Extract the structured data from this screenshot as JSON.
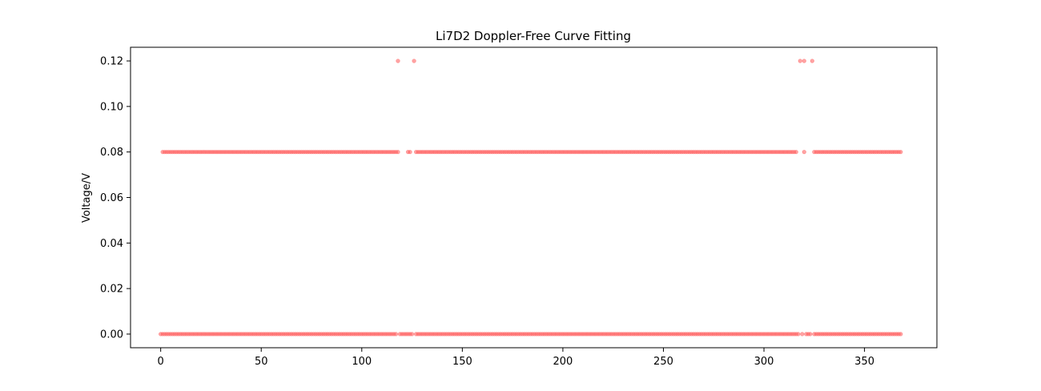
{
  "chart_data": {
    "type": "scatter",
    "title": "Li7D2 Doppler-Free Curve Fitting",
    "xlabel": "",
    "ylabel": "Voltage/V",
    "xlim": [
      -15,
      386
    ],
    "ylim": [
      -0.006,
      0.126
    ],
    "xticks": [
      0,
      50,
      100,
      150,
      200,
      250,
      300,
      350
    ],
    "yticks": [
      0.0,
      0.02,
      0.04,
      0.06,
      0.08,
      0.1,
      0.12
    ],
    "ytick_labels": [
      "0.00",
      "0.02",
      "0.04",
      "0.06",
      "0.08",
      "0.10",
      "0.12"
    ],
    "grid": false,
    "marker_color": "#ff5a5a",
    "series": [
      {
        "x_range": [
          0,
          368
        ],
        "y_levels": [
          0.0,
          0.08,
          0.12
        ],
        "high_points_x": [
          118,
          126,
          318,
          320,
          324
        ],
        "gaps_at_0_08_x": [
          0,
          119,
          120,
          121,
          122,
          125,
          126,
          317,
          318,
          319,
          321,
          322,
          323,
          324
        ],
        "y_at_0_08_x_extra": [
          320
        ],
        "gaps_at_0_x": [
          118,
          126,
          318,
          320,
          324
        ]
      }
    ]
  }
}
